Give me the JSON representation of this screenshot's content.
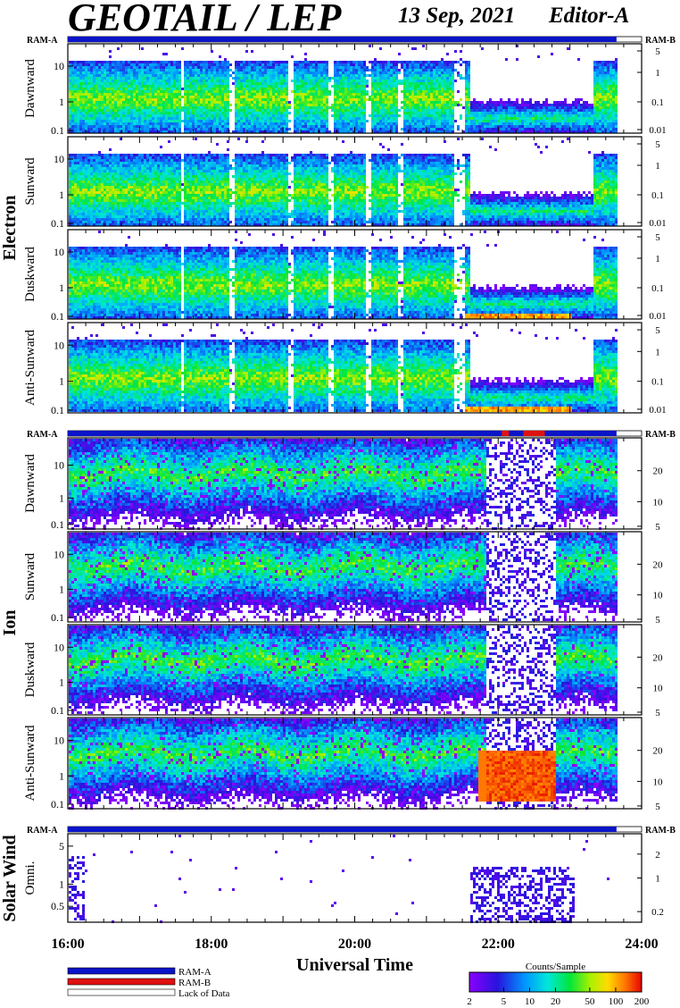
{
  "header": {
    "instrument": "GEOTAIL / LEP",
    "date": "13 Sep, 2021",
    "editor": "Editor-A"
  },
  "groups": {
    "electron": "Electron",
    "ion": "Ion",
    "solar_wind": "Solar Wind"
  },
  "ram_labels": {
    "left": "RAM-A",
    "right": "RAM-B"
  },
  "legend": {
    "ram_a": "RAM-A",
    "ram_b": "RAM-B",
    "lack": "Lack of Data",
    "ram_a_color": "#0a14c8",
    "ram_b_color": "#e01010"
  },
  "colorbar": {
    "title": "Counts/Sample",
    "ticks": [
      "2",
      "5",
      "10",
      "20",
      "50",
      "100",
      "200"
    ]
  },
  "xaxis": {
    "title": "Universal Time",
    "ticks": [
      "16:00",
      "18:00",
      "20:00",
      "22:00",
      "24:00"
    ]
  },
  "chart_data": {
    "type": "heatmap",
    "x_range_hours": [
      16,
      24
    ],
    "data_end_hour": 23.65,
    "panels": [
      {
        "group": "Electron",
        "label": "Dawnward",
        "left_ticks": [
          "10",
          "1",
          "0.1"
        ],
        "right_ticks": [
          "5",
          "1",
          "0.1",
          "0.01"
        ]
      },
      {
        "group": "Electron",
        "label": "Sunward",
        "left_ticks": [
          "10",
          "1",
          "0.1"
        ],
        "right_ticks": [
          "5",
          "1",
          "0.1",
          "0.01"
        ]
      },
      {
        "group": "Electron",
        "label": "Duskward",
        "left_ticks": [
          "10",
          "1",
          "0.1"
        ],
        "right_ticks": [
          "5",
          "1",
          "0.1",
          "0.01"
        ]
      },
      {
        "group": "Electron",
        "label": "Anti-Sunward",
        "left_ticks": [
          "10",
          "1",
          "0.1"
        ],
        "right_ticks": [
          "5",
          "1",
          "0.1",
          "0.01"
        ]
      },
      {
        "group": "Ion",
        "label": "Dawnward",
        "left_ticks": [
          "10",
          "1",
          "0.1"
        ],
        "right_ticks": [
          "20",
          "10",
          "5"
        ]
      },
      {
        "group": "Ion",
        "label": "Sunward",
        "left_ticks": [
          "10",
          "1",
          "0.1"
        ],
        "right_ticks": [
          "20",
          "10",
          "5"
        ]
      },
      {
        "group": "Ion",
        "label": "Duskward",
        "left_ticks": [
          "10",
          "1",
          "0.1"
        ],
        "right_ticks": [
          "20",
          "10",
          "5"
        ]
      },
      {
        "group": "Ion",
        "label": "Anti-Sunward",
        "left_ticks": [
          "10",
          "1",
          "0.1"
        ],
        "right_ticks": [
          "20",
          "10",
          "5"
        ]
      },
      {
        "group": "Solar Wind",
        "label": "Omni.",
        "left_ticks": [
          "5",
          "1",
          "0.5"
        ],
        "right_ticks": [
          "2",
          "1",
          "0.2"
        ]
      }
    ],
    "ram_b_intervals_hours": [
      [
        22.05,
        22.15
      ],
      [
        22.35,
        22.65
      ]
    ]
  }
}
